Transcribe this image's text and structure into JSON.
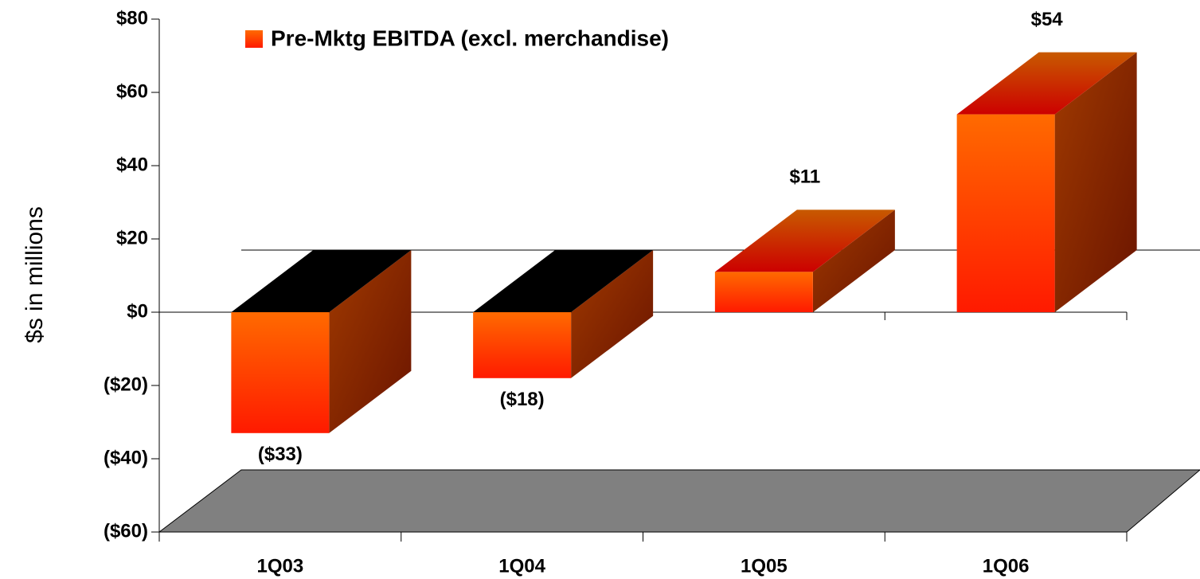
{
  "chart_data": {
    "type": "bar3d",
    "y_label": "$s in millions",
    "categories": [
      "1Q03",
      "1Q04",
      "1Q05",
      "1Q06"
    ],
    "series": [
      {
        "name": "Pre-Mktg EBITDA (excl. merchandise)",
        "color": "#ff6600",
        "values": [
          -33,
          -18,
          11,
          54
        ],
        "value_labels": [
          "($33)",
          "($18)",
          "$11",
          "$54"
        ]
      }
    ],
    "ylim": [
      -60,
      80
    ],
    "yticks": [
      {
        "value": -60,
        "label": "($60)"
      },
      {
        "value": -40,
        "label": "($40)"
      },
      {
        "value": -20,
        "label": "($20)"
      },
      {
        "value": 0,
        "label": "$0"
      },
      {
        "value": 20,
        "label": "$20"
      },
      {
        "value": 40,
        "label": "$40"
      },
      {
        "value": 60,
        "label": "$60"
      },
      {
        "value": 80,
        "label": "$80"
      }
    ],
    "legend": "top-left"
  }
}
